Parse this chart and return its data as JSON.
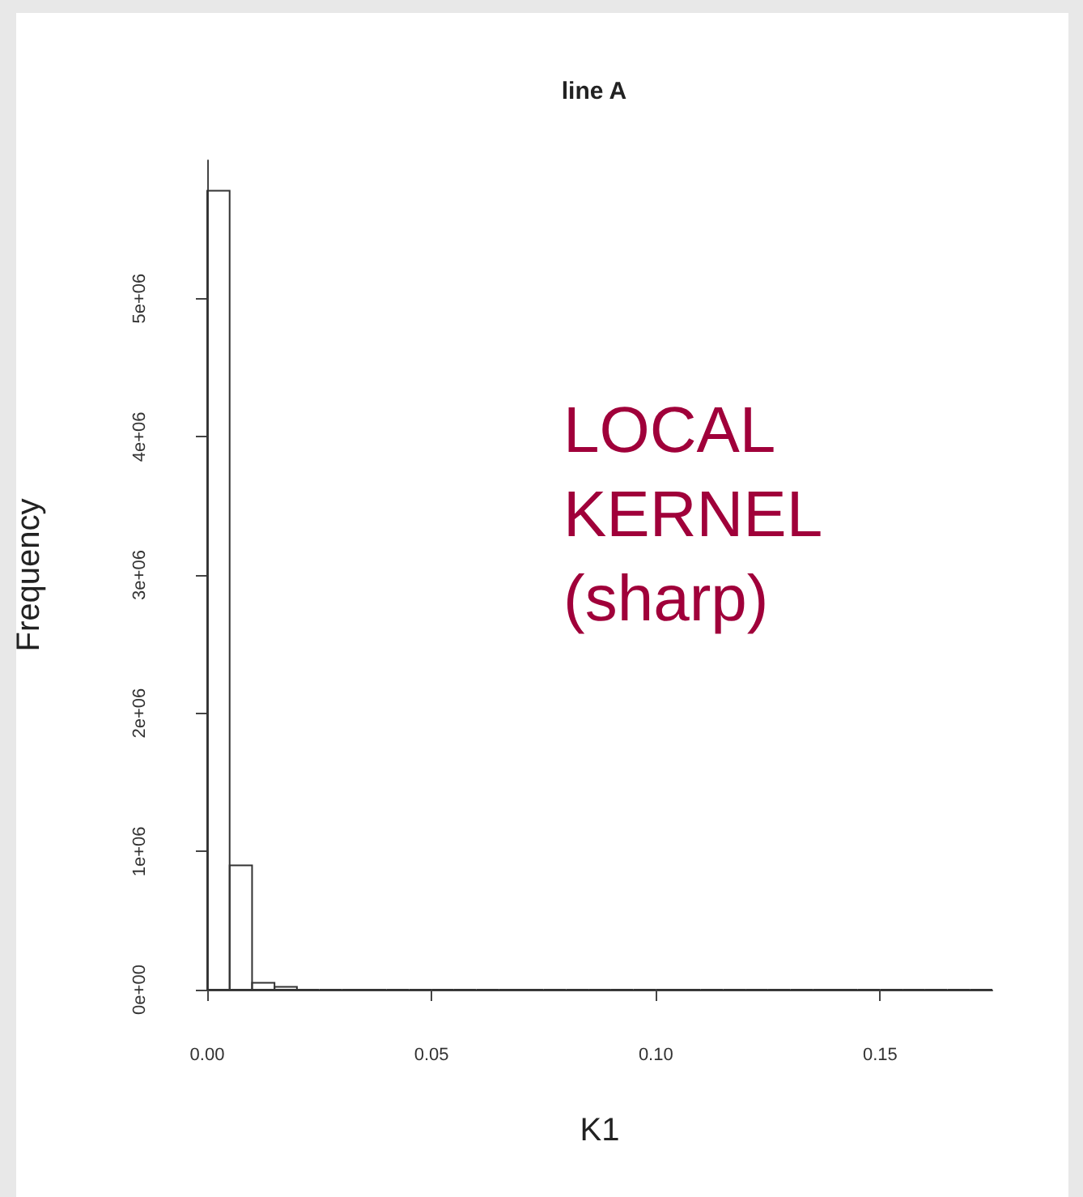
{
  "chart_data": {
    "type": "histogram",
    "title": "line A",
    "xlabel": "K1",
    "ylabel": "Frequency",
    "bins": [
      0,
      0.005,
      0.01,
      0.015,
      0.02,
      0.025,
      0.03,
      0.035,
      0.04,
      0.045,
      0.05,
      0.055,
      0.06,
      0.065,
      0.07,
      0.075,
      0.08,
      0.085,
      0.09,
      0.095,
      0.1,
      0.105,
      0.11,
      0.115,
      0.12,
      0.125,
      0.13,
      0.135,
      0.14,
      0.145,
      0.15,
      0.155,
      0.16,
      0.165,
      0.17,
      0.175
    ],
    "values": [
      5780000,
      900000,
      50000,
      20000,
      0,
      0,
      0,
      0,
      0,
      0,
      0,
      0,
      0,
      0,
      0,
      0,
      0,
      0,
      0,
      0,
      0,
      0,
      0,
      0,
      0,
      0,
      0,
      0,
      0,
      0,
      0,
      0,
      0,
      0,
      0
    ],
    "color": "#333333",
    "xlim": [
      0,
      0.175
    ],
    "xticks": [
      {
        "value": 0,
        "label": "0.00"
      },
      {
        "value": 0.05,
        "label": "0.05"
      },
      {
        "value": 0.1,
        "label": "0.10"
      },
      {
        "value": 0.15,
        "label": "0.15"
      }
    ],
    "ylim": [
      0,
      6000000
    ],
    "yticks": [
      {
        "value": 0,
        "label": "0e+00"
      },
      {
        "value": 1000000,
        "label": "1e+06"
      },
      {
        "value": 2000000,
        "label": "2e+06"
      },
      {
        "value": 3000000,
        "label": "3e+06"
      },
      {
        "value": 4000000,
        "label": "4e+06"
      },
      {
        "value": 5000000,
        "label": "5e+06"
      }
    ],
    "grid": false,
    "annotations": [
      "LOCAL\nKERNEL\n(sharp)"
    ]
  }
}
